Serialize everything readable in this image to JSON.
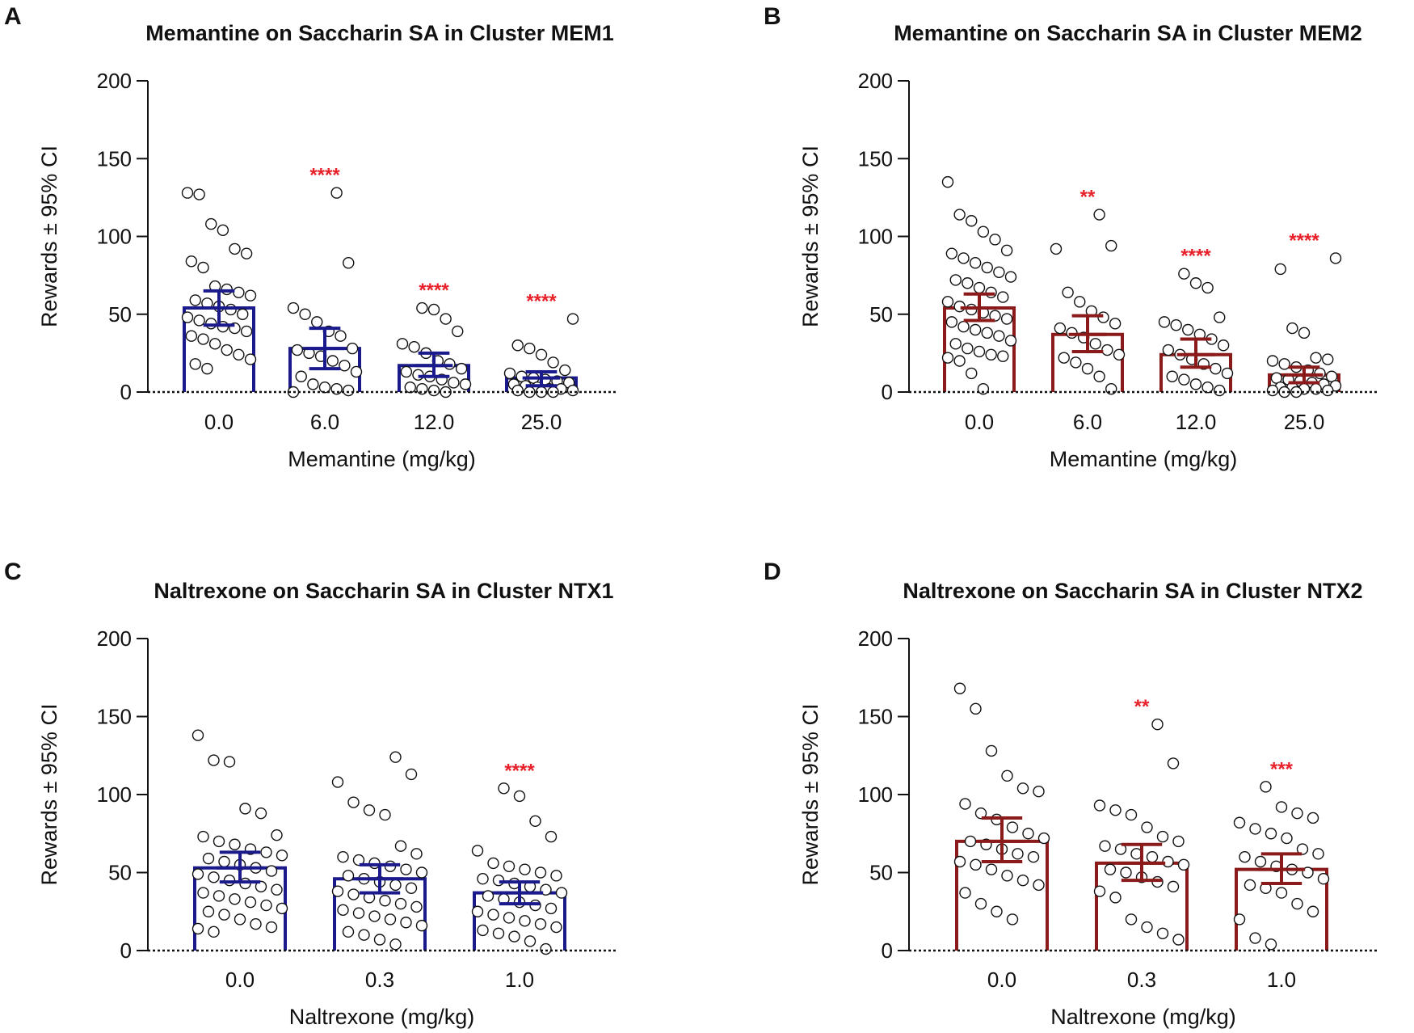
{
  "chart_data": [
    {
      "id": "A",
      "panel_label": "A",
      "type": "bar",
      "title": "Memantine on Saccharin SA in Cluster MEM1",
      "xlabel": "Memantine (mg/kg)",
      "ylabel": "Rewards ± 95% CI",
      "ylim": [
        0,
        200
      ],
      "yticks": [
        0,
        50,
        100,
        150,
        200
      ],
      "categories": [
        "0.0",
        "6.0",
        "12.0",
        "25.0"
      ],
      "values": [
        54,
        28,
        17,
        9
      ],
      "ci_low": [
        43,
        15,
        10,
        4
      ],
      "ci_high": [
        65,
        41,
        25,
        13
      ],
      "significance": [
        "",
        "****",
        "****",
        "****"
      ],
      "points": [
        [
          128,
          127,
          108,
          104,
          92,
          89,
          84,
          80,
          68,
          66,
          64,
          62,
          59,
          57,
          55,
          53,
          50,
          48,
          46,
          44,
          42,
          41,
          39,
          36,
          34,
          31,
          27,
          24,
          21,
          18,
          15
        ],
        [
          128,
          83,
          54,
          50,
          45,
          39,
          36,
          28,
          27,
          25,
          23,
          20,
          17,
          13,
          10,
          5,
          3,
          2,
          1,
          0
        ],
        [
          54,
          53,
          47,
          39,
          31,
          29,
          25,
          20,
          18,
          15,
          13,
          11,
          10,
          8,
          6,
          5,
          3,
          2,
          1,
          0
        ],
        [
          47,
          30,
          28,
          24,
          19,
          14,
          12,
          10,
          9,
          8,
          7,
          6,
          5,
          4,
          3,
          2,
          2,
          1,
          1,
          0,
          0,
          0
        ]
      ],
      "bar_color": "#1a1a8c",
      "sig_color": "#e8202a"
    },
    {
      "id": "B",
      "panel_label": "B",
      "type": "bar",
      "title": "Memantine on Saccharin SA in Cluster MEM2",
      "xlabel": "Memantine (mg/kg)",
      "ylabel": "Rewards ± 95% CI",
      "ylim": [
        0,
        200
      ],
      "yticks": [
        0,
        50,
        100,
        150,
        200
      ],
      "categories": [
        "0.0",
        "6.0",
        "12.0",
        "25.0"
      ],
      "values": [
        54,
        37,
        24,
        11
      ],
      "ci_low": [
        46,
        26,
        16,
        6
      ],
      "ci_high": [
        63,
        49,
        34,
        16
      ],
      "significance": [
        "",
        "**",
        "****",
        "****"
      ],
      "points": [
        [
          135,
          114,
          110,
          103,
          98,
          91,
          89,
          86,
          83,
          80,
          77,
          74,
          72,
          70,
          67,
          64,
          61,
          58,
          55,
          53,
          51,
          49,
          47,
          45,
          42,
          40,
          38,
          36,
          33,
          31,
          28,
          26,
          24,
          23,
          22,
          20,
          12,
          2
        ],
        [
          114,
          94,
          92,
          64,
          58,
          52,
          48,
          44,
          41,
          38,
          35,
          31,
          27,
          24,
          22,
          19,
          15,
          10,
          2
        ],
        [
          76,
          70,
          67,
          48,
          45,
          43,
          40,
          37,
          34,
          30,
          27,
          24,
          21,
          18,
          15,
          12,
          10,
          8,
          5,
          3,
          1
        ],
        [
          86,
          79,
          41,
          38,
          22,
          21,
          20,
          18,
          16,
          14,
          12,
          10,
          9,
          8,
          7,
          6,
          5,
          4,
          3,
          3,
          2,
          2,
          1,
          1,
          0,
          0
        ]
      ],
      "bar_color": "#8b1a1a",
      "sig_color": "#e8202a"
    },
    {
      "id": "C",
      "panel_label": "C",
      "type": "bar",
      "title": "Naltrexone on Saccharin SA in Cluster NTX1",
      "xlabel": "Naltrexone (mg/kg)",
      "ylabel": "Rewards ± 95% CI",
      "ylim": [
        0,
        200
      ],
      "yticks": [
        0,
        50,
        100,
        150,
        200
      ],
      "categories": [
        "0.0",
        "0.3",
        "1.0"
      ],
      "values": [
        53,
        46,
        37
      ],
      "ci_low": [
        44,
        37,
        30
      ],
      "ci_high": [
        63,
        55,
        44
      ],
      "significance": [
        "",
        "",
        "****"
      ],
      "points": [
        [
          138,
          122,
          121,
          91,
          88,
          74,
          73,
          70,
          68,
          65,
          63,
          61,
          59,
          57,
          55,
          53,
          51,
          49,
          47,
          45,
          43,
          41,
          39,
          37,
          35,
          33,
          31,
          29,
          27,
          25,
          23,
          20,
          17,
          15,
          14,
          12
        ],
        [
          124,
          113,
          108,
          95,
          90,
          87,
          67,
          62,
          60,
          58,
          56,
          54,
          52,
          50,
          48,
          46,
          44,
          42,
          40,
          38,
          36,
          34,
          32,
          30,
          28,
          26,
          24,
          22,
          20,
          18,
          16,
          12,
          10,
          7,
          4
        ],
        [
          104,
          99,
          83,
          73,
          64,
          56,
          54,
          52,
          50,
          48,
          46,
          45,
          43,
          41,
          39,
          37,
          35,
          33,
          31,
          29,
          27,
          25,
          23,
          21,
          19,
          17,
          15,
          13,
          11,
          9,
          6,
          1
        ]
      ],
      "bar_color": "#1a1a8c",
      "sig_color": "#e8202a"
    },
    {
      "id": "D",
      "panel_label": "D",
      "type": "bar",
      "title": "Naltrexone on Saccharin SA in Cluster NTX2",
      "xlabel": "Naltrexone (mg/kg)",
      "ylabel": "Rewards ± 95% CI",
      "ylim": [
        0,
        200
      ],
      "yticks": [
        0,
        50,
        100,
        150,
        200
      ],
      "categories": [
        "0.0",
        "0.3",
        "1.0"
      ],
      "values": [
        70,
        56,
        52
      ],
      "ci_low": [
        57,
        45,
        43
      ],
      "ci_high": [
        85,
        68,
        62
      ],
      "significance": [
        "",
        "**",
        "***"
      ],
      "points": [
        [
          168,
          155,
          128,
          112,
          104,
          102,
          94,
          88,
          84,
          79,
          75,
          72,
          70,
          68,
          65,
          62,
          60,
          57,
          55,
          52,
          48,
          45,
          42,
          37,
          30,
          25,
          20
        ],
        [
          145,
          120,
          93,
          90,
          87,
          79,
          73,
          70,
          67,
          65,
          62,
          60,
          57,
          55,
          52,
          50,
          47,
          44,
          41,
          38,
          34,
          20,
          15,
          11,
          7
        ],
        [
          105,
          92,
          88,
          85,
          82,
          78,
          75,
          72,
          65,
          62,
          60,
          57,
          54,
          52,
          50,
          46,
          42,
          40,
          37,
          30,
          25,
          20,
          8,
          4
        ]
      ],
      "bar_color": "#8b1a1a",
      "sig_color": "#e8202a"
    }
  ]
}
